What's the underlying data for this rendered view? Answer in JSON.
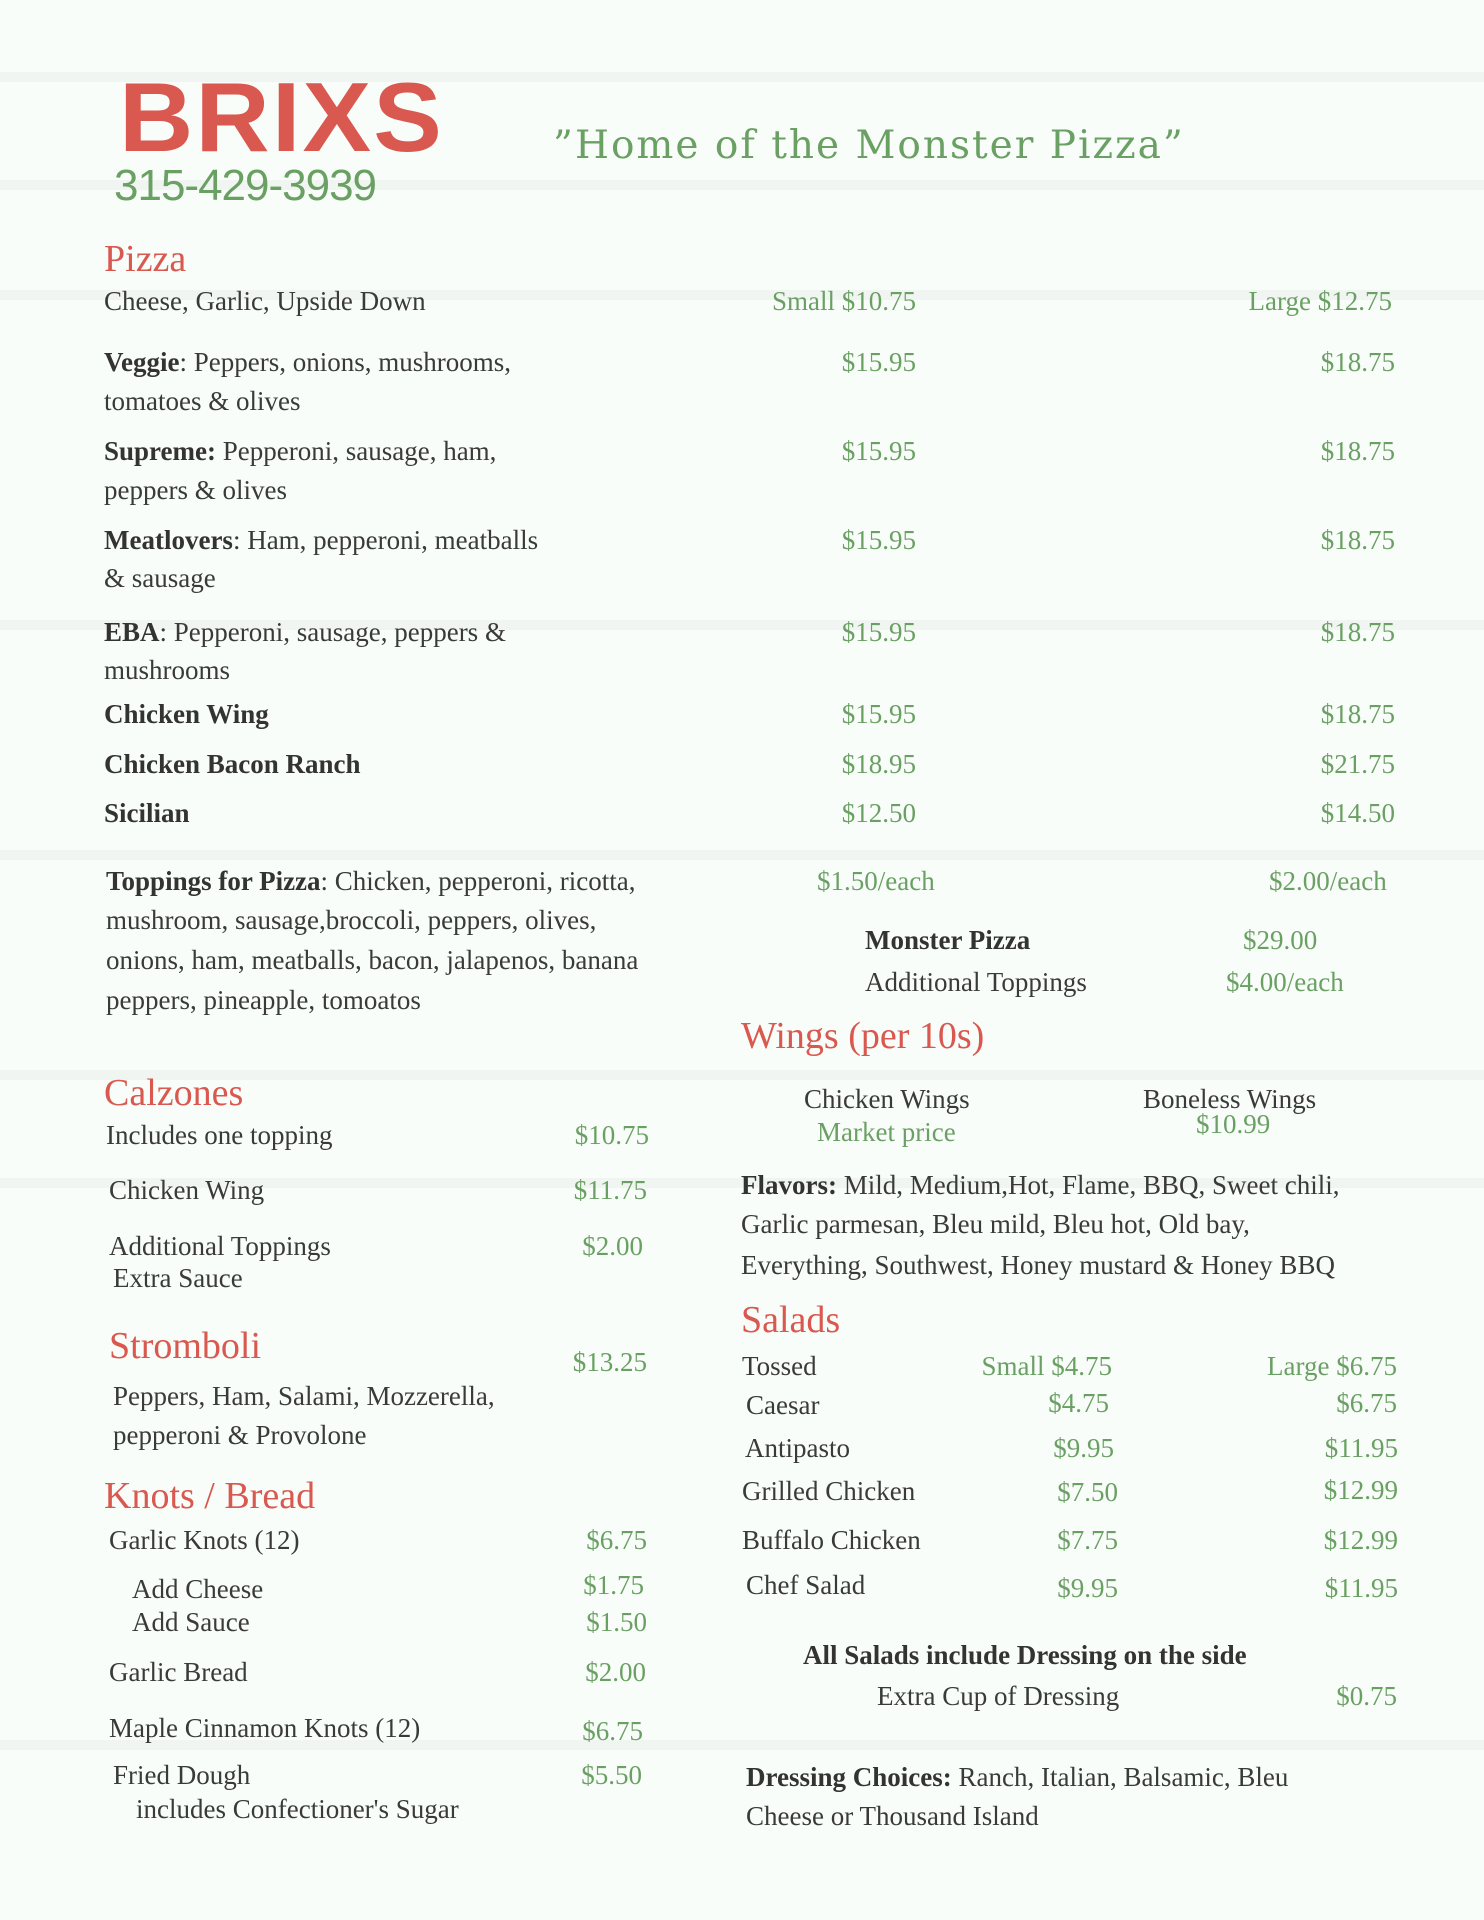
{
  "header": {
    "logo": "BRIXS",
    "phone": "315-429-3939",
    "tagline": "”Home of the Monster Pizza”"
  },
  "colors": {
    "accent_red": "#d9584f",
    "accent_green": "#6aa063",
    "text": "#3a3a3a",
    "background": "#f9fdf9"
  },
  "pizza": {
    "title": "Pizza",
    "items": [
      {
        "name": "",
        "desc": "Cheese, Garlic, Upside Down",
        "small": "Small $10.75",
        "large": "Large $12.75"
      },
      {
        "name": "Veggie",
        "desc": ": Peppers, onions, mushrooms,",
        "desc2": "tomatoes & olives",
        "small": "$15.95",
        "large": "$18.75"
      },
      {
        "name": "Supreme:",
        "desc": " Pepperoni, sausage, ham,",
        "desc2": "peppers & olives",
        "small": "$15.95",
        "large": "$18.75"
      },
      {
        "name": "Meatlovers",
        "desc": ": Ham, pepperoni, meatballs",
        "desc2": "& sausage",
        "small": "$15.95",
        "large": "$18.75"
      },
      {
        "name": "EBA",
        "desc": ": Pepperoni, sausage, peppers &",
        "desc2": "mushrooms",
        "small": "$15.95",
        "large": "$18.75"
      },
      {
        "name": "Chicken Wing",
        "small": "$15.95",
        "large": "$18.75"
      },
      {
        "name": "Chicken Bacon Ranch",
        "small": "$18.95",
        "large": "$21.75"
      },
      {
        "name": "Sicilian",
        "small": "$12.50",
        "large": "$14.50"
      }
    ],
    "toppings": {
      "label": "Toppings for Pizza",
      "lines": [
        ": Chicken, pepperoni, ricotta,",
        "mushroom, sausage,broccoli, peppers, olives,",
        "onions, ham, meatballs, bacon, jalapenos, banana",
        "peppers, pineapple, tomoatos"
      ],
      "small": "$1.50/each",
      "large": "$2.00/each"
    },
    "monster": {
      "name": "Monster Pizza",
      "price": "$29.00",
      "extra": "Additional Toppings",
      "extra_price": "$4.00/each"
    }
  },
  "calzones": {
    "title": "Calzones",
    "items": [
      {
        "name": "Includes one topping",
        "price": "$10.75"
      },
      {
        "name": "Chicken Wing",
        "price": "$11.75"
      },
      {
        "name": "Additional Toppings",
        "name2": "Extra Sauce",
        "price": "$2.00"
      }
    ]
  },
  "stromboli": {
    "title": "Stromboli",
    "price": "$13.25",
    "desc": [
      "Peppers, Ham, Salami, Mozzerella,",
      "pepperoni & Provolone"
    ]
  },
  "knots": {
    "title": "Knots / Bread",
    "items": [
      {
        "name": "Garlic Knots (12)",
        "price": "$6.75"
      },
      {
        "name": "Add Cheese",
        "price": "$1.75"
      },
      {
        "name": "Add Sauce",
        "price": "$1.50"
      },
      {
        "name": "Garlic Bread",
        "price": "$2.00"
      },
      {
        "name": "Maple Cinnamon Knots (12)",
        "price": "$6.75"
      },
      {
        "name": "Fried Dough",
        "note": "includes Confectioner's Sugar",
        "price": "$5.50"
      }
    ]
  },
  "wings": {
    "title": "Wings (per 10s)",
    "chicken": "Chicken Wings",
    "chicken_price": "Market price",
    "boneless": "Boneless Wings",
    "boneless_price": "$10.99",
    "flavors_label": "Flavors:",
    "flavors": [
      " Mild, Medium,Hot, Flame, BBQ, Sweet chili,",
      "Garlic parmesan, Bleu mild, Bleu hot, Old bay,",
      "Everything, Southwest, Honey mustard & Honey BBQ"
    ]
  },
  "salads": {
    "title": "Salads",
    "items": [
      {
        "name": "Tossed",
        "small": "Small $4.75",
        "large": "Large $6.75"
      },
      {
        "name": "Caesar",
        "small": "$4.75",
        "large": "$6.75"
      },
      {
        "name": "Antipasto",
        "small": "$9.95",
        "large": "$11.95"
      },
      {
        "name": "Grilled Chicken",
        "small": "$7.50",
        "large": "$12.99"
      },
      {
        "name": "Buffalo Chicken",
        "small": "$7.75",
        "large": "$12.99"
      },
      {
        "name": "Chef Salad",
        "small": "$9.95",
        "large": "$11.95"
      }
    ],
    "note": "All Salads include Dressing on the side",
    "extra": "Extra Cup of Dressing",
    "extra_price": "$0.75",
    "dressing_label": "Dressing Choices:",
    "dressing": [
      " Ranch, Italian, Balsamic, Bleu",
      "Cheese or Thousand Island"
    ]
  }
}
